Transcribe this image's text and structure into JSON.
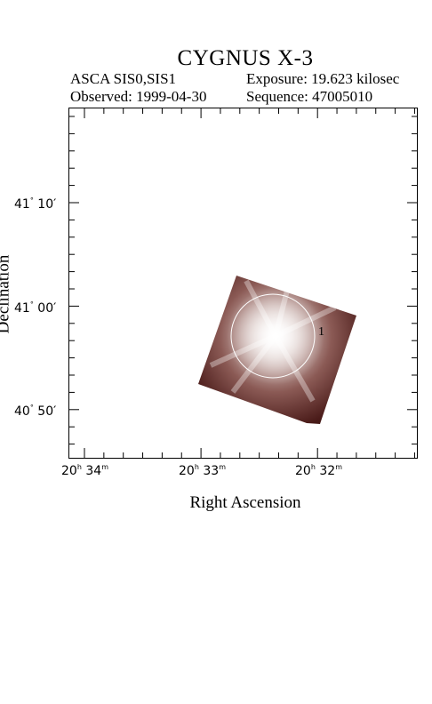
{
  "header": {
    "title": "CYGNUS X-3",
    "instrument": "ASCA SIS0,SIS1",
    "exposure": "Exposure: 19.623 kilosec",
    "observed": "Observed: 1999-04-30",
    "sequence": "Sequence: 47005010"
  },
  "axes": {
    "xlabel": "Right Ascension",
    "ylabel": "Declination",
    "x_ticks": [
      {
        "h": "20",
        "m": "34"
      },
      {
        "h": "20",
        "m": "33"
      },
      {
        "h": "20",
        "m": "32"
      }
    ],
    "y_ticks": [
      {
        "deg": "41",
        "min": "10"
      },
      {
        "deg": "41",
        "min": "00"
      },
      {
        "deg": "40",
        "min": "50"
      }
    ]
  },
  "source": {
    "label": "1"
  },
  "colors": {
    "image_dark": "#2b0b0b",
    "image_mid": "#6e3a36",
    "image_bright": "#ffffff"
  }
}
